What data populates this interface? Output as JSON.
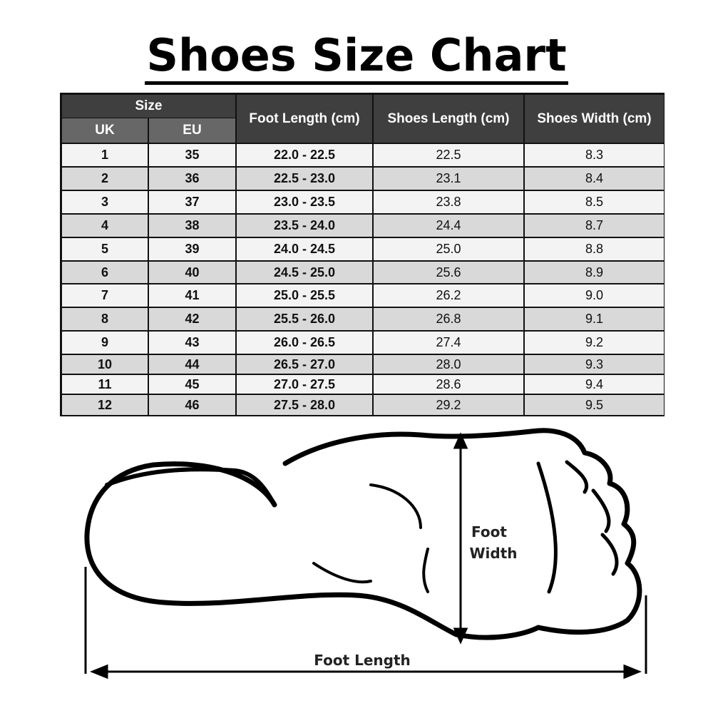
{
  "title": "Shoes Size Chart",
  "chart_data": {
    "type": "table",
    "title": "Shoes Size Chart",
    "group_header": "Size",
    "columns": [
      "UK",
      "EU",
      "Foot Length (cm)",
      "Shoes Length (cm)",
      "Shoes Width (cm)"
    ],
    "rows": [
      [
        "1",
        "35",
        "22.0 - 22.5",
        "22.5",
        "8.3"
      ],
      [
        "2",
        "36",
        "22.5 - 23.0",
        "23.1",
        "8.4"
      ],
      [
        "3",
        "37",
        "23.0 - 23.5",
        "23.8",
        "8.5"
      ],
      [
        "4",
        "38",
        "23.5 - 24.0",
        "24.4",
        "8.7"
      ],
      [
        "5",
        "39",
        "24.0 - 24.5",
        "25.0",
        "8.8"
      ],
      [
        "6",
        "40",
        "24.5 - 25.0",
        "25.6",
        "8.9"
      ],
      [
        "7",
        "41",
        "25.0 - 25.5",
        "26.2",
        "9.0"
      ],
      [
        "8",
        "42",
        "25.5 - 26.0",
        "26.8",
        "9.1"
      ],
      [
        "9",
        "43",
        "26.0 - 26.5",
        "27.4",
        "9.2"
      ],
      [
        "10",
        "44",
        "26.5 - 27.0",
        "28.0",
        "9.3"
      ],
      [
        "11",
        "45",
        "27.0 - 27.5",
        "28.6",
        "9.4"
      ],
      [
        "12",
        "46",
        "27.5 - 28.0",
        "29.2",
        "9.5"
      ]
    ]
  },
  "diagram": {
    "foot_width_label_1": "Foot",
    "foot_width_label_2": "Width",
    "foot_length_label": "Foot Length"
  },
  "colors": {
    "header_dark": "#3f3f3f",
    "header_mid": "#676767",
    "row_light": "#f3f3f3",
    "row_dark": "#d9d9d9"
  }
}
